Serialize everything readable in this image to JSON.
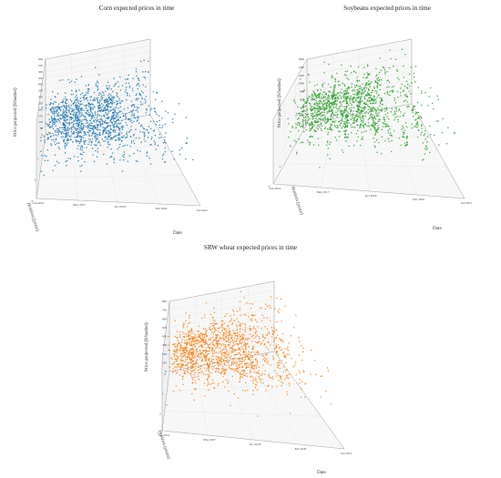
{
  "chart_data": [
    {
      "type": "scatter",
      "title": "Corn expected prices in time",
      "xlabel": "Date",
      "ylabel": "Horizon (years)",
      "zlabel": "Price projected ($/bushel)",
      "x_ticks": [
        "Jan 2014",
        "May 2017",
        "Oct 2018",
        "Feb 2020",
        "Jun 2021"
      ],
      "y_ticks": [
        "0",
        "1",
        "2",
        "3"
      ],
      "z_ticks": [
        "0",
        "50",
        "100",
        "150",
        "200",
        "250",
        "300",
        "350",
        "400",
        "450",
        "500",
        "550",
        "600"
      ],
      "zlim": [
        0,
        600
      ],
      "color": "#1f77b4",
      "grid": true,
      "series": [
        {
          "name": "",
          "n_points": 1400,
          "base": 300,
          "trend": 30,
          "spread": 75
        }
      ]
    },
    {
      "type": "scatter",
      "title": "Soybeans expected prices in time",
      "xlabel": "Date",
      "ylabel": "Horizon (years)",
      "zlabel": "Price projected ($/bushel)",
      "x_ticks": [
        "Jan 2014",
        "May 2017",
        "Oct 2018",
        "Feb 2020",
        "Jun 2021"
      ],
      "y_ticks": [
        "0",
        "1",
        "2",
        "3"
      ],
      "z_ticks": [
        "0",
        "200",
        "400",
        "600",
        "800",
        "1000",
        "1200",
        "1400",
        "1600"
      ],
      "zlim": [
        0,
        1600
      ],
      "color": "#2ca02c",
      "grid": true,
      "series": [
        {
          "name": "",
          "n_points": 1400,
          "base": 950,
          "trend": 80,
          "spread": 190
        }
      ]
    },
    {
      "type": "scatter",
      "title": "SRW wheat expected prices in time",
      "xlabel": "Date",
      "ylabel": "Horizon (years)",
      "zlabel": "Price projected ($/bushel)",
      "x_ticks": [
        "Jan 2014",
        "May 2017",
        "Oct 2018",
        "Feb 2020",
        "Jun 2021"
      ],
      "y_ticks": [
        "0",
        "1",
        "2",
        "3"
      ],
      "z_ticks": [
        "0",
        "100",
        "200",
        "300",
        "400",
        "500",
        "600",
        "700",
        "800"
      ],
      "zlim": [
        0,
        800
      ],
      "color": "#ff7f0e",
      "grid": true,
      "series": [
        {
          "name": "",
          "n_points": 1400,
          "base": 480,
          "trend": 60,
          "spread": 110
        }
      ]
    }
  ]
}
